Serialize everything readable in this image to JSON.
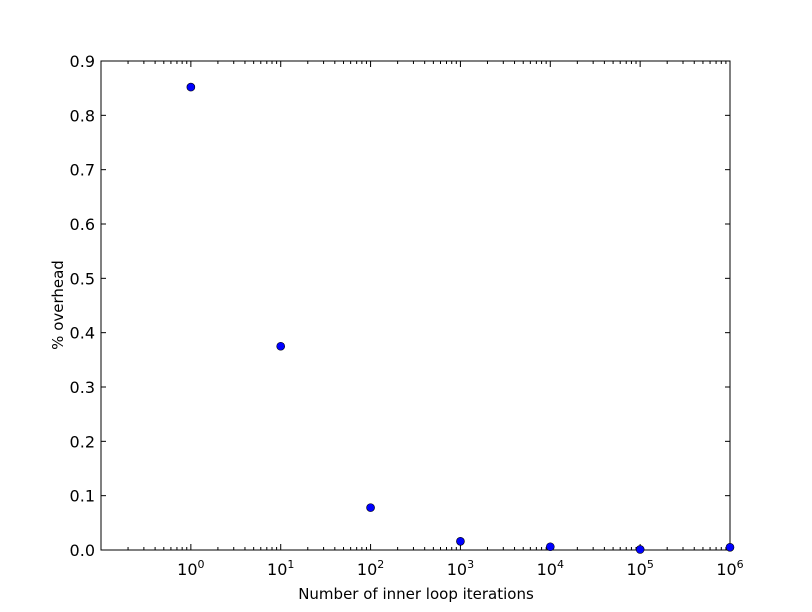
{
  "chart_data": {
    "type": "scatter",
    "title": "",
    "xlabel": "Number of inner loop iterations",
    "ylabel": "% overhead",
    "xscale": "log",
    "xlim": [
      0.1,
      1000000
    ],
    "ylim": [
      0.0,
      0.9
    ],
    "xticks": [
      {
        "base": "10",
        "exp": "0",
        "value": 1
      },
      {
        "base": "10",
        "exp": "1",
        "value": 10
      },
      {
        "base": "10",
        "exp": "2",
        "value": 100
      },
      {
        "base": "10",
        "exp": "3",
        "value": 1000
      },
      {
        "base": "10",
        "exp": "4",
        "value": 10000
      },
      {
        "base": "10",
        "exp": "5",
        "value": 100000
      },
      {
        "base": "10",
        "exp": "6",
        "value": 1000000
      }
    ],
    "yticks": [
      "0.0",
      "0.1",
      "0.2",
      "0.3",
      "0.4",
      "0.5",
      "0.6",
      "0.7",
      "0.8",
      "0.9"
    ],
    "grid": false,
    "legend": "none",
    "marker_color": "#0000ff",
    "x": [
      1,
      10,
      100,
      1000,
      10000,
      100000,
      1000000
    ],
    "y": [
      0.852,
      0.375,
      0.078,
      0.016,
      0.006,
      0.001,
      0.005
    ]
  }
}
